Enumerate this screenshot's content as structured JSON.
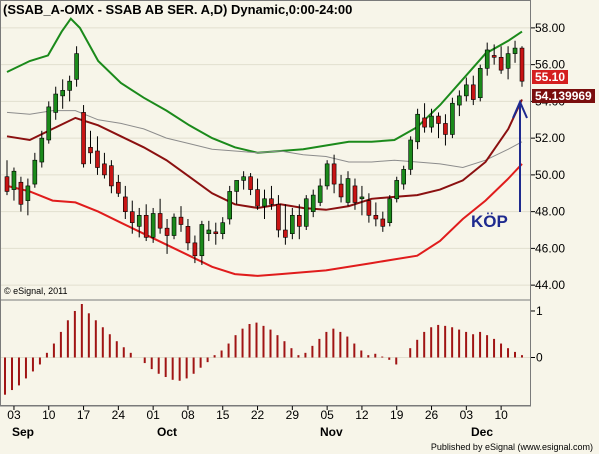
{
  "title": "(SSAB_A-OMX - SSAB AB SER. A,D) Dynamic,0:00-24:00",
  "credit": "© eSignal, 2011",
  "publisher": "Published by eSignal (www.esignal.com)",
  "annotation": "KÖP",
  "price_tags": [
    {
      "label": "55.10",
      "color": "#d41f1f"
    },
    {
      "label": "54.139969",
      "color": "#7a0e0e"
    }
  ],
  "chart_data": [
    {
      "type": "candlestick",
      "title": "(SSAB_A-OMX - SSAB AB SER. A,D) Dynamic,0:00-24:00",
      "ylim": [
        43.3,
        59.3
      ],
      "y_ticks": [
        "44.00",
        "46.00",
        "48.00",
        "50.00",
        "52.00",
        "54.00",
        "56.00",
        "58.00"
      ],
      "x_tick_labels": [
        "03",
        "10",
        "17",
        "24",
        "01",
        "08",
        "15",
        "22",
        "29",
        "05",
        "12",
        "19",
        "26",
        "03",
        "10"
      ],
      "month_labels": [
        "Sep",
        "Oct",
        "Nov",
        "Dec"
      ],
      "candles": [
        {
          "date": "Sep 01",
          "o": 49.9,
          "h": 50.8,
          "l": 48.9,
          "c": 49.1
        },
        {
          "date": "Sep 02",
          "o": 49.2,
          "h": 50.4,
          "l": 48.6,
          "c": 50.2
        },
        {
          "date": "Sep 05",
          "o": 49.6,
          "h": 49.9,
          "l": 48.0,
          "c": 48.4
        },
        {
          "date": "Sep 06",
          "o": 48.6,
          "h": 49.8,
          "l": 47.8,
          "c": 49.4
        },
        {
          "date": "Sep 07",
          "o": 49.5,
          "h": 51.2,
          "l": 49.3,
          "c": 50.8
        },
        {
          "date": "Sep 08",
          "o": 50.7,
          "h": 52.4,
          "l": 50.4,
          "c": 52.0
        },
        {
          "date": "Sep 09",
          "o": 51.9,
          "h": 54.0,
          "l": 51.7,
          "c": 53.7
        },
        {
          "date": "Sep 12",
          "o": 53.4,
          "h": 54.8,
          "l": 53.0,
          "c": 54.4
        },
        {
          "date": "Sep 13",
          "o": 54.3,
          "h": 55.2,
          "l": 53.6,
          "c": 54.6
        },
        {
          "date": "Sep 14",
          "o": 54.6,
          "h": 55.4,
          "l": 54.0,
          "c": 55.1
        },
        {
          "date": "Sep 15",
          "o": 55.2,
          "h": 57.0,
          "l": 54.8,
          "c": 56.6
        },
        {
          "date": "Sep 16",
          "o": 53.4,
          "h": 53.8,
          "l": 50.4,
          "c": 50.6
        },
        {
          "date": "Sep 19",
          "o": 51.5,
          "h": 52.4,
          "l": 50.6,
          "c": 51.2
        },
        {
          "date": "Sep 20",
          "o": 51.3,
          "h": 52.1,
          "l": 50.0,
          "c": 50.4
        },
        {
          "date": "Sep 21",
          "o": 50.6,
          "h": 51.2,
          "l": 49.8,
          "c": 50.0
        },
        {
          "date": "Sep 22",
          "o": 50.5,
          "h": 50.8,
          "l": 49.0,
          "c": 49.4
        },
        {
          "date": "Sep 23",
          "o": 49.6,
          "h": 50.0,
          "l": 48.8,
          "c": 49.0
        },
        {
          "date": "Sep 26",
          "o": 48.8,
          "h": 49.4,
          "l": 47.6,
          "c": 48.0
        },
        {
          "date": "Sep 27",
          "o": 48.0,
          "h": 48.6,
          "l": 46.8,
          "c": 47.4
        },
        {
          "date": "Sep 28",
          "o": 47.2,
          "h": 48.2,
          "l": 46.6,
          "c": 47.8
        },
        {
          "date": "Sep 29",
          "o": 47.8,
          "h": 48.4,
          "l": 46.4,
          "c": 46.6
        },
        {
          "date": "Sep 30",
          "o": 46.6,
          "h": 48.2,
          "l": 46.3,
          "c": 47.9
        },
        {
          "date": "Oct 03",
          "o": 47.9,
          "h": 48.7,
          "l": 46.8,
          "c": 47.1
        },
        {
          "date": "Oct 04",
          "o": 47.1,
          "h": 47.6,
          "l": 45.7,
          "c": 46.7
        },
        {
          "date": "Oct 05",
          "o": 46.7,
          "h": 47.9,
          "l": 46.5,
          "c": 47.7
        },
        {
          "date": "Oct 06",
          "o": 47.7,
          "h": 48.3,
          "l": 46.9,
          "c": 47.3
        },
        {
          "date": "Oct 07",
          "o": 47.2,
          "h": 47.6,
          "l": 45.9,
          "c": 46.3
        },
        {
          "date": "Oct 10",
          "o": 46.3,
          "h": 46.7,
          "l": 45.2,
          "c": 45.6
        },
        {
          "date": "Oct 11",
          "o": 45.6,
          "h": 47.5,
          "l": 45.1,
          "c": 47.3
        },
        {
          "date": "Oct 12",
          "o": 46.8,
          "h": 47.5,
          "l": 46.4,
          "c": 47.0
        },
        {
          "date": "Oct 13",
          "o": 46.9,
          "h": 47.4,
          "l": 46.2,
          "c": 46.8
        },
        {
          "date": "Oct 14",
          "o": 46.8,
          "h": 47.7,
          "l": 46.5,
          "c": 47.4
        },
        {
          "date": "Oct 17",
          "o": 47.6,
          "h": 49.4,
          "l": 47.3,
          "c": 49.1
        },
        {
          "date": "Oct 18",
          "o": 49.1,
          "h": 49.6,
          "l": 48.4,
          "c": 49.7
        },
        {
          "date": "Oct 19",
          "o": 49.7,
          "h": 50.2,
          "l": 49.2,
          "c": 49.9
        },
        {
          "date": "Oct 20",
          "o": 49.9,
          "h": 50.1,
          "l": 48.9,
          "c": 49.2
        },
        {
          "date": "Oct 21",
          "o": 49.2,
          "h": 49.8,
          "l": 48.1,
          "c": 48.3
        },
        {
          "date": "Oct 24",
          "o": 48.3,
          "h": 49.2,
          "l": 47.6,
          "c": 48.7
        },
        {
          "date": "Oct 25",
          "o": 48.7,
          "h": 49.4,
          "l": 48.1,
          "c": 48.4
        },
        {
          "date": "Oct 26",
          "o": 48.4,
          "h": 48.9,
          "l": 46.6,
          "c": 47.0
        },
        {
          "date": "Oct 27",
          "o": 47.0,
          "h": 48.4,
          "l": 46.2,
          "c": 46.6
        },
        {
          "date": "Oct 28",
          "o": 46.8,
          "h": 48.2,
          "l": 46.5,
          "c": 47.8
        },
        {
          "date": "Oct 31",
          "o": 47.8,
          "h": 48.4,
          "l": 46.5,
          "c": 47.2
        },
        {
          "date": "Nov 01",
          "o": 47.2,
          "h": 48.9,
          "l": 47.0,
          "c": 48.7
        },
        {
          "date": "Nov 02",
          "o": 48.0,
          "h": 49.2,
          "l": 47.7,
          "c": 48.9
        },
        {
          "date": "Nov 03",
          "o": 48.5,
          "h": 49.8,
          "l": 48.3,
          "c": 49.4
        },
        {
          "date": "Nov 04",
          "o": 49.4,
          "h": 50.8,
          "l": 49.2,
          "c": 50.6
        },
        {
          "date": "Nov 07",
          "o": 50.6,
          "h": 51.1,
          "l": 49.0,
          "c": 49.5
        },
        {
          "date": "Nov 08",
          "o": 49.5,
          "h": 50.0,
          "l": 48.5,
          "c": 48.8
        },
        {
          "date": "Nov 09",
          "o": 48.5,
          "h": 50.2,
          "l": 48.3,
          "c": 49.8
        },
        {
          "date": "Nov 10",
          "o": 49.4,
          "h": 49.8,
          "l": 48.1,
          "c": 48.5
        },
        {
          "date": "Nov 11",
          "o": 48.7,
          "h": 49.4,
          "l": 47.8,
          "c": 48.8
        },
        {
          "date": "Nov 14",
          "o": 48.6,
          "h": 49.0,
          "l": 47.4,
          "c": 47.8
        },
        {
          "date": "Nov 15",
          "o": 47.8,
          "h": 48.5,
          "l": 47.2,
          "c": 47.6
        },
        {
          "date": "Nov 16",
          "o": 47.6,
          "h": 48.0,
          "l": 46.9,
          "c": 47.2
        },
        {
          "date": "Nov 17",
          "o": 47.4,
          "h": 48.9,
          "l": 47.2,
          "c": 48.7
        },
        {
          "date": "Nov 18",
          "o": 48.7,
          "h": 49.9,
          "l": 48.5,
          "c": 49.7
        },
        {
          "date": "Nov 21",
          "o": 49.5,
          "h": 50.5,
          "l": 49.2,
          "c": 50.3
        },
        {
          "date": "Nov 22",
          "o": 50.3,
          "h": 52.1,
          "l": 50.0,
          "c": 51.9
        },
        {
          "date": "Nov 23",
          "o": 51.8,
          "h": 53.6,
          "l": 51.4,
          "c": 53.3
        },
        {
          "date": "Nov 24",
          "o": 53.1,
          "h": 53.9,
          "l": 52.3,
          "c": 52.6
        },
        {
          "date": "Nov 25",
          "o": 52.6,
          "h": 53.6,
          "l": 52.3,
          "c": 53.2
        },
        {
          "date": "Nov 28",
          "o": 53.2,
          "h": 53.4,
          "l": 52.0,
          "c": 52.8
        },
        {
          "date": "Nov 29",
          "o": 52.8,
          "h": 53.3,
          "l": 51.6,
          "c": 52.2
        },
        {
          "date": "Nov 30",
          "o": 52.2,
          "h": 54.2,
          "l": 52.0,
          "c": 53.9
        },
        {
          "date": "Dec 01",
          "o": 53.8,
          "h": 54.6,
          "l": 53.2,
          "c": 54.3
        },
        {
          "date": "Dec 02",
          "o": 54.3,
          "h": 55.3,
          "l": 54.0,
          "c": 54.9
        },
        {
          "date": "Dec 05",
          "o": 54.9,
          "h": 55.4,
          "l": 53.8,
          "c": 54.1
        },
        {
          "date": "Dec 06",
          "o": 54.2,
          "h": 56.0,
          "l": 54.0,
          "c": 55.8
        },
        {
          "date": "Dec 07",
          "o": 55.8,
          "h": 57.2,
          "l": 55.4,
          "c": 56.8
        },
        {
          "date": "Dec 08",
          "o": 56.5,
          "h": 57.1,
          "l": 56.0,
          "c": 56.4
        },
        {
          "date": "Dec 09",
          "o": 56.4,
          "h": 57.0,
          "l": 55.5,
          "c": 55.7
        },
        {
          "date": "Dec 12",
          "o": 55.8,
          "h": 57.0,
          "l": 55.2,
          "c": 56.6
        },
        {
          "date": "Dec 13",
          "o": 56.6,
          "h": 57.3,
          "l": 56.1,
          "c": 56.9
        },
        {
          "date": "Dec 14",
          "o": 56.9,
          "h": 57.0,
          "l": 54.8,
          "c": 55.1
        }
      ],
      "lines": [
        {
          "color": "#1b8a1b",
          "points": [
            [
              0,
              55.6
            ],
            [
              5,
              56.2
            ],
            [
              9,
              56.5
            ],
            [
              12,
              57.8
            ],
            [
              14,
              58.5
            ],
            [
              16,
              58.0
            ],
            [
              20,
              56.2
            ],
            [
              25,
              55.0
            ],
            [
              30,
              54.2
            ],
            [
              35,
              53.5
            ],
            [
              40,
              52.7
            ],
            [
              45,
              52.0
            ],
            [
              50,
              51.5
            ],
            [
              55,
              51.2
            ],
            [
              60,
              51.3
            ],
            [
              65,
              51.4
            ],
            [
              70,
              51.6
            ],
            [
              75,
              51.8
            ],
            [
              80,
              51.8
            ],
            [
              85,
              51.9
            ],
            [
              90,
              52.6
            ],
            [
              95,
              53.8
            ],
            [
              100,
              55.2
            ],
            [
              105,
              56.6
            ],
            [
              110,
              57.3
            ],
            [
              113,
              57.8
            ]
          ]
        },
        {
          "color": "#8c8c8c",
          "points": [
            [
              0,
              53.4
            ],
            [
              5,
              53.3
            ],
            [
              10,
              53.5
            ],
            [
              15,
              53.5
            ],
            [
              20,
              53.0
            ],
            [
              25,
              52.8
            ],
            [
              30,
              52.5
            ],
            [
              35,
              52.0
            ],
            [
              40,
              51.7
            ],
            [
              45,
              51.4
            ],
            [
              50,
              51.3
            ],
            [
              55,
              51.2
            ],
            [
              60,
              51.3
            ],
            [
              65,
              51.1
            ],
            [
              70,
              51.0
            ],
            [
              75,
              50.7
            ],
            [
              80,
              50.7
            ],
            [
              85,
              50.8
            ],
            [
              90,
              50.7
            ],
            [
              95,
              50.6
            ],
            [
              100,
              50.4
            ],
            [
              105,
              50.8
            ],
            [
              110,
              51.4
            ],
            [
              113,
              51.8
            ]
          ]
        },
        {
          "color": "#8b1010",
          "points": [
            [
              0,
              52.1
            ],
            [
              5,
              51.9
            ],
            [
              10,
              52.5
            ],
            [
              15,
              53.1
            ],
            [
              20,
              52.7
            ],
            [
              25,
              52.1
            ],
            [
              30,
              51.5
            ],
            [
              35,
              50.8
            ],
            [
              40,
              49.9
            ],
            [
              45,
              49.0
            ],
            [
              50,
              48.4
            ],
            [
              55,
              48.2
            ],
            [
              60,
              48.4
            ],
            [
              65,
              48.2
            ],
            [
              70,
              48.1
            ],
            [
              75,
              48.3
            ],
            [
              80,
              48.7
            ],
            [
              85,
              48.8
            ],
            [
              90,
              48.9
            ],
            [
              95,
              49.2
            ],
            [
              100,
              49.7
            ],
            [
              105,
              50.7
            ],
            [
              110,
              52.5
            ],
            [
              113,
              54.1
            ]
          ]
        },
        {
          "color": "#e01c1c",
          "points": [
            [
              0,
              49.4
            ],
            [
              5,
              49.1
            ],
            [
              10,
              48.6
            ],
            [
              15,
              48.5
            ],
            [
              20,
              48.0
            ],
            [
              25,
              47.4
            ],
            [
              30,
              46.8
            ],
            [
              35,
              46.2
            ],
            [
              40,
              45.6
            ],
            [
              45,
              45.0
            ],
            [
              50,
              44.6
            ],
            [
              55,
              44.5
            ],
            [
              60,
              44.6
            ],
            [
              65,
              44.7
            ],
            [
              70,
              44.8
            ],
            [
              75,
              45.0
            ],
            [
              80,
              45.2
            ],
            [
              85,
              45.4
            ],
            [
              90,
              45.6
            ],
            [
              95,
              46.4
            ],
            [
              100,
              47.6
            ],
            [
              105,
              48.6
            ],
            [
              110,
              49.8
            ],
            [
              113,
              50.6
            ]
          ]
        }
      ]
    },
    {
      "type": "histogram",
      "ylim": [
        -1.0,
        1.15
      ],
      "y_ticks": [
        "1",
        "0"
      ],
      "values": [
        -0.8,
        -0.7,
        -0.6,
        -0.45,
        -0.3,
        -0.15,
        0.1,
        0.3,
        0.55,
        0.8,
        1.0,
        1.15,
        0.95,
        0.8,
        0.65,
        0.5,
        0.35,
        0.22,
        0.1,
        0.0,
        -0.12,
        -0.25,
        -0.35,
        -0.42,
        -0.48,
        -0.5,
        -0.45,
        -0.35,
        -0.22,
        -0.1,
        0.05,
        0.15,
        0.3,
        0.48,
        0.62,
        0.72,
        0.75,
        0.68,
        0.6,
        0.48,
        0.35,
        0.2,
        0.05,
        0.1,
        0.25,
        0.4,
        0.55,
        0.62,
        0.55,
        0.45,
        0.3,
        0.15,
        0.05,
        0.08,
        0.02,
        -0.05,
        -0.15,
        0.0,
        0.2,
        0.38,
        0.55,
        0.65,
        0.7,
        0.68,
        0.65,
        0.6,
        0.55,
        0.5,
        0.55,
        0.48,
        0.4,
        0.3,
        0.2,
        0.12,
        0.05
      ]
    }
  ]
}
